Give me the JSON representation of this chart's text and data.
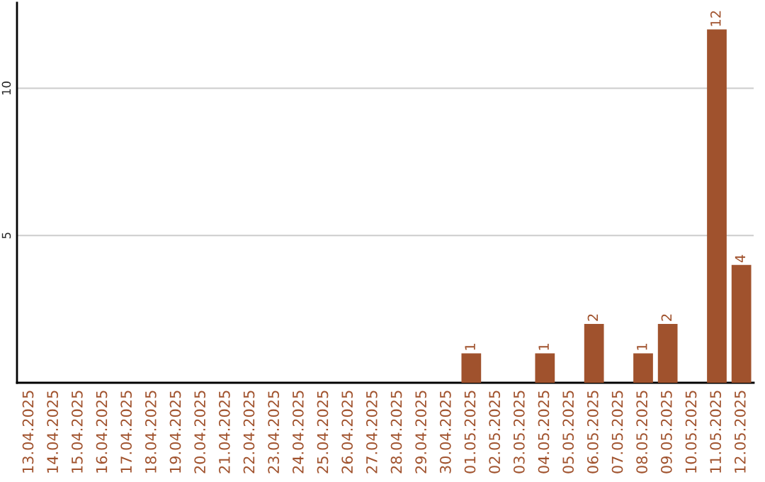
{
  "chart_data": {
    "type": "bar",
    "categories": [
      "13.04.2025",
      "14.04.2025",
      "15.04.2025",
      "16.04.2025",
      "17.04.2025",
      "18.04.2025",
      "19.04.2025",
      "20.04.2025",
      "21.04.2025",
      "22.04.2025",
      "23.04.2025",
      "24.04.2025",
      "25.04.2025",
      "26.04.2025",
      "27.04.2025",
      "28.04.2025",
      "29.04.2025",
      "30.04.2025",
      "01.05.2025",
      "02.05.2025",
      "03.05.2025",
      "04.05.2025",
      "05.05.2025",
      "06.05.2025",
      "07.05.2025",
      "08.05.2025",
      "09.05.2025",
      "10.05.2025",
      "11.05.2025",
      "12.05.2025"
    ],
    "values": [
      0,
      0,
      0,
      0,
      0,
      0,
      0,
      0,
      0,
      0,
      0,
      0,
      0,
      0,
      0,
      0,
      0,
      0,
      1,
      0,
      0,
      1,
      0,
      2,
      0,
      1,
      2,
      0,
      12,
      4
    ],
    "value_labels": [
      null,
      null,
      null,
      null,
      null,
      null,
      null,
      null,
      null,
      null,
      null,
      null,
      null,
      null,
      null,
      null,
      null,
      null,
      "1",
      null,
      null,
      "1",
      null,
      "2",
      null,
      "1",
      "2",
      null,
      "12",
      "4"
    ],
    "color": "#a0522d",
    "ylim": [
      0,
      12.9
    ],
    "yticks": [
      5,
      10
    ],
    "grid": "y"
  }
}
